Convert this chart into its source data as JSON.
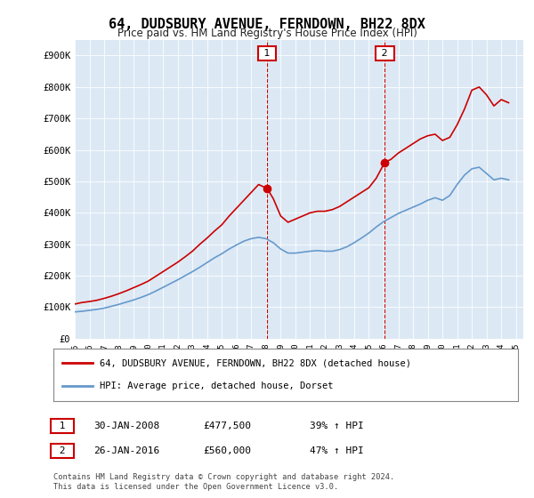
{
  "title": "64, DUDSBURY AVENUE, FERNDOWN, BH22 8DX",
  "subtitle": "Price paid vs. HM Land Registry's House Price Index (HPI)",
  "legend_line1": "64, DUDSBURY AVENUE, FERNDOWN, BH22 8DX (detached house)",
  "legend_line2": "HPI: Average price, detached house, Dorset",
  "annotation1_label": "1",
  "annotation1_date": "30-JAN-2008",
  "annotation1_price": "£477,500",
  "annotation1_hpi": "39% ↑ HPI",
  "annotation2_label": "2",
  "annotation2_date": "26-JAN-2016",
  "annotation2_price": "£560,000",
  "annotation2_hpi": "47% ↑ HPI",
  "footnote": "Contains HM Land Registry data © Crown copyright and database right 2024.\nThis data is licensed under the Open Government Licence v3.0.",
  "bg_color": "#ffffff",
  "plot_bg_color": "#dce9f5",
  "red_color": "#cc0000",
  "blue_color": "#6699cc",
  "vline_color": "#cc0000",
  "annot_box_color": "#cc0000",
  "ylim": [
    0,
    950000
  ],
  "yticks": [
    0,
    100000,
    200000,
    300000,
    400000,
    500000,
    600000,
    700000,
    800000,
    900000
  ],
  "ytick_labels": [
    "£0",
    "£100K",
    "£200K",
    "£300K",
    "£400K",
    "£500K",
    "£600K",
    "£700K",
    "£800K",
    "£900K"
  ],
  "xtick_years": [
    1995,
    1996,
    1997,
    1998,
    1999,
    2000,
    2001,
    2002,
    2003,
    2004,
    2005,
    2006,
    2007,
    2008,
    2009,
    2010,
    2011,
    2012,
    2013,
    2014,
    2015,
    2016,
    2017,
    2018,
    2019,
    2020,
    2021,
    2022,
    2023,
    2024,
    2025
  ],
  "sale1_x": 2008.08,
  "sale1_y": 477500,
  "sale2_x": 2016.07,
  "sale2_y": 560000,
  "red_x": [
    1995,
    1995.5,
    1996,
    1996.5,
    1997,
    1997.5,
    1998,
    1998.5,
    1999,
    1999.5,
    2000,
    2000.5,
    2001,
    2001.5,
    2002,
    2002.5,
    2003,
    2003.5,
    2004,
    2004.5,
    2005,
    2005.5,
    2006,
    2006.5,
    2007,
    2007.5,
    2008.08,
    2008.5,
    2009,
    2009.5,
    2010,
    2010.5,
    2011,
    2011.5,
    2012,
    2012.5,
    2013,
    2013.5,
    2014,
    2014.5,
    2015,
    2015.5,
    2016.07,
    2016.5,
    2017,
    2017.5,
    2018,
    2018.5,
    2019,
    2019.5,
    2020,
    2020.5,
    2021,
    2021.5,
    2022,
    2022.5,
    2023,
    2023.5,
    2024,
    2024.5
  ],
  "red_y": [
    110000,
    115000,
    118000,
    122000,
    128000,
    135000,
    143000,
    152000,
    162000,
    172000,
    183000,
    198000,
    213000,
    228000,
    243000,
    260000,
    278000,
    300000,
    320000,
    342000,
    362000,
    390000,
    415000,
    440000,
    465000,
    490000,
    477500,
    445000,
    390000,
    370000,
    380000,
    390000,
    400000,
    405000,
    405000,
    410000,
    420000,
    435000,
    450000,
    465000,
    480000,
    510000,
    560000,
    570000,
    590000,
    605000,
    620000,
    635000,
    645000,
    650000,
    630000,
    640000,
    680000,
    730000,
    790000,
    800000,
    775000,
    740000,
    760000,
    750000
  ],
  "blue_x": [
    1995,
    1995.5,
    1996,
    1996.5,
    1997,
    1997.5,
    1998,
    1998.5,
    1999,
    1999.5,
    2000,
    2000.5,
    2001,
    2001.5,
    2002,
    2002.5,
    2003,
    2003.5,
    2004,
    2004.5,
    2005,
    2005.5,
    2006,
    2006.5,
    2007,
    2007.5,
    2008,
    2008.5,
    2009,
    2009.5,
    2010,
    2010.5,
    2011,
    2011.5,
    2012,
    2012.5,
    2013,
    2013.5,
    2014,
    2014.5,
    2015,
    2015.5,
    2016,
    2016.5,
    2017,
    2017.5,
    2018,
    2018.5,
    2019,
    2019.5,
    2020,
    2020.5,
    2021,
    2021.5,
    2022,
    2022.5,
    2023,
    2023.5,
    2024,
    2024.5
  ],
  "blue_y": [
    85000,
    87000,
    90000,
    93000,
    97000,
    103000,
    109000,
    116000,
    123000,
    131000,
    140000,
    151000,
    163000,
    175000,
    187000,
    200000,
    213000,
    227000,
    242000,
    257000,
    270000,
    285000,
    298000,
    310000,
    318000,
    322000,
    318000,
    305000,
    285000,
    272000,
    272000,
    275000,
    278000,
    280000,
    278000,
    278000,
    283000,
    292000,
    305000,
    320000,
    336000,
    355000,
    372000,
    385000,
    398000,
    408000,
    418000,
    428000,
    440000,
    448000,
    440000,
    455000,
    490000,
    520000,
    540000,
    545000,
    525000,
    505000,
    510000,
    505000
  ]
}
